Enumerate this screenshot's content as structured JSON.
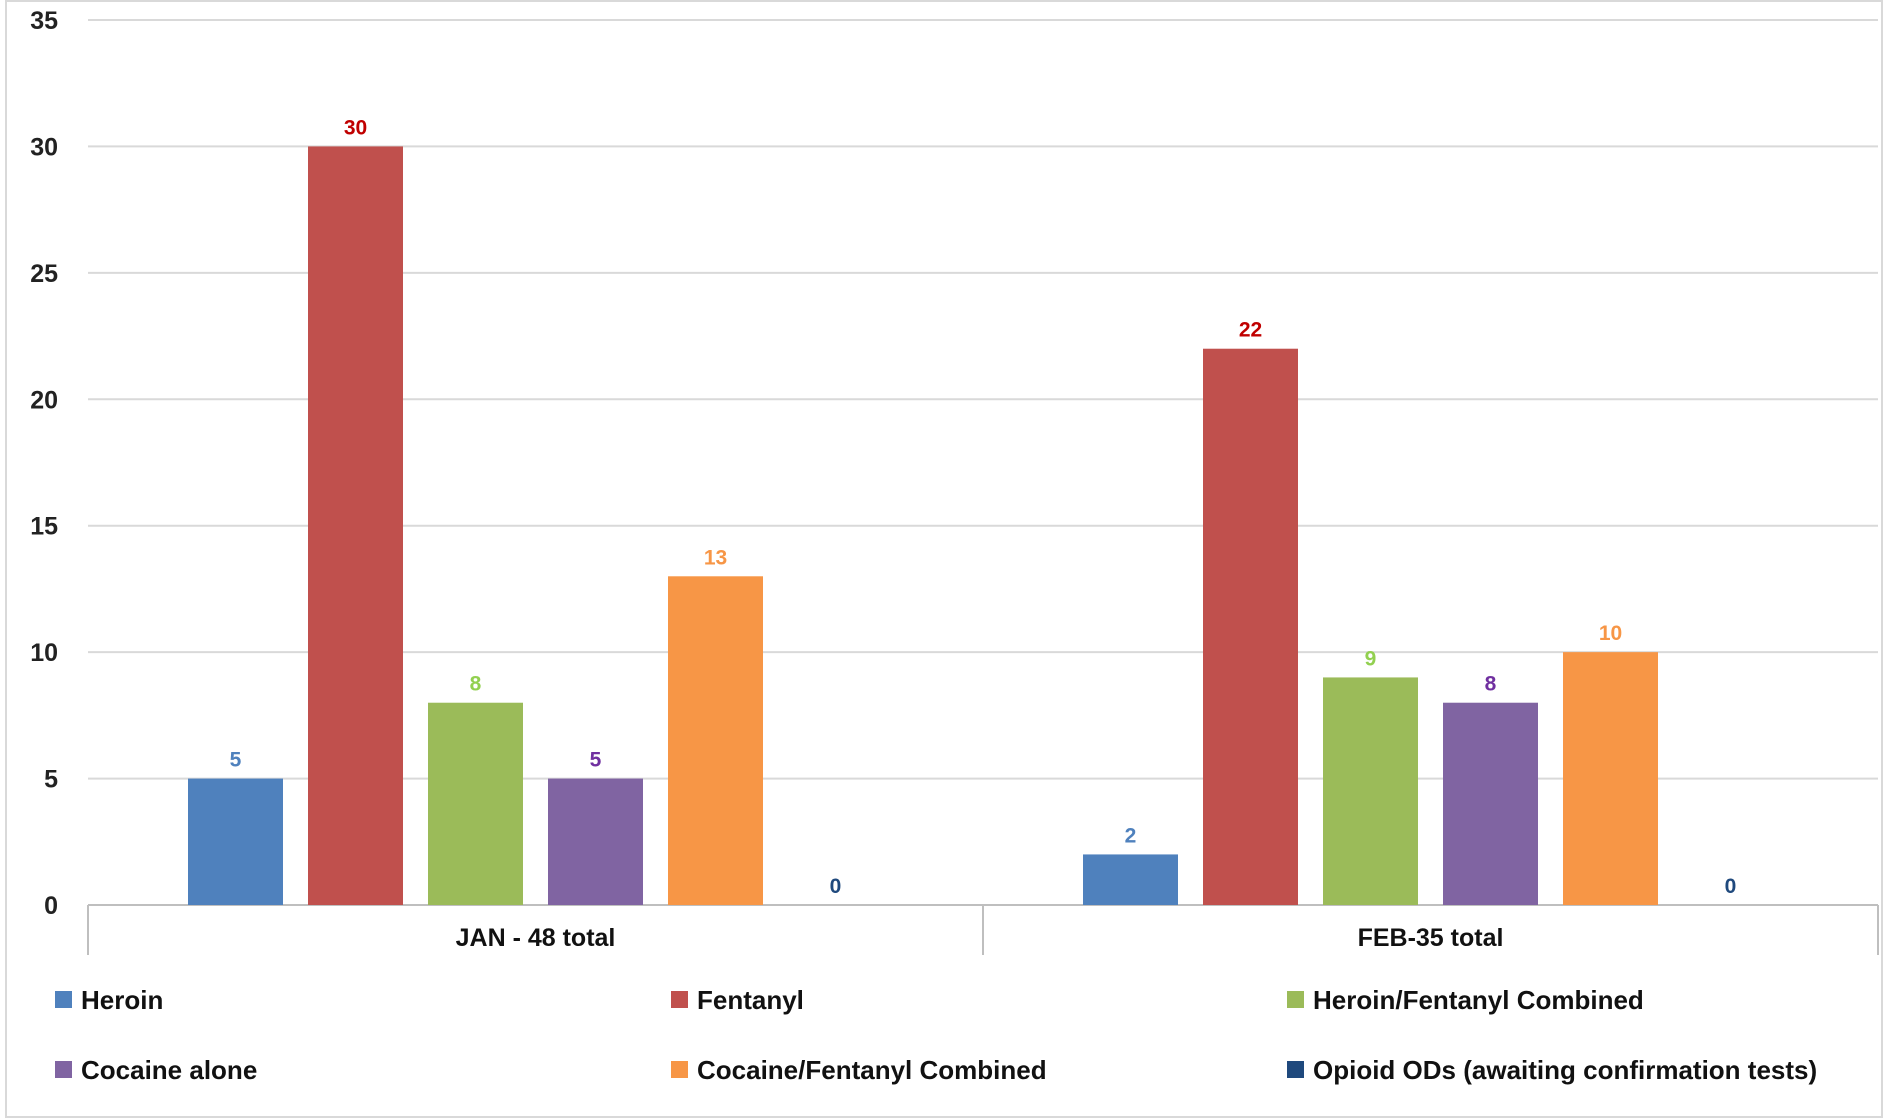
{
  "chart_data": {
    "type": "bar",
    "title": "",
    "xlabel": "",
    "ylabel": "",
    "ylim": [
      0,
      35
    ],
    "yticks": [
      0,
      5,
      10,
      15,
      20,
      25,
      30,
      35
    ],
    "grid": true,
    "legend_position": "bottom",
    "categories": [
      "JAN - 48 total",
      "FEB-35 total"
    ],
    "series": [
      {
        "name": "Heroin",
        "values": [
          5,
          2
        ],
        "color": "#4f81bd",
        "label_color": "#4f81bd"
      },
      {
        "name": "Fentanyl",
        "values": [
          30,
          22
        ],
        "color": "#c0504d",
        "label_color": "#c00000"
      },
      {
        "name": "Heroin/Fentanyl Combined",
        "values": [
          8,
          9
        ],
        "color": "#9bbb59",
        "label_color": "#92d050"
      },
      {
        "name": "Cocaine alone",
        "values": [
          5,
          8
        ],
        "color": "#8064a2",
        "label_color": "#7030a0"
      },
      {
        "name": "Cocaine/Fentanyl Combined",
        "values": [
          13,
          10
        ],
        "color": "#f79646",
        "label_color": "#f79646"
      },
      {
        "name": "Opioid ODs (awaiting confirmation tests)",
        "values": [
          0,
          0
        ],
        "color": "#1f497d",
        "label_color": "#1f497d"
      }
    ]
  }
}
